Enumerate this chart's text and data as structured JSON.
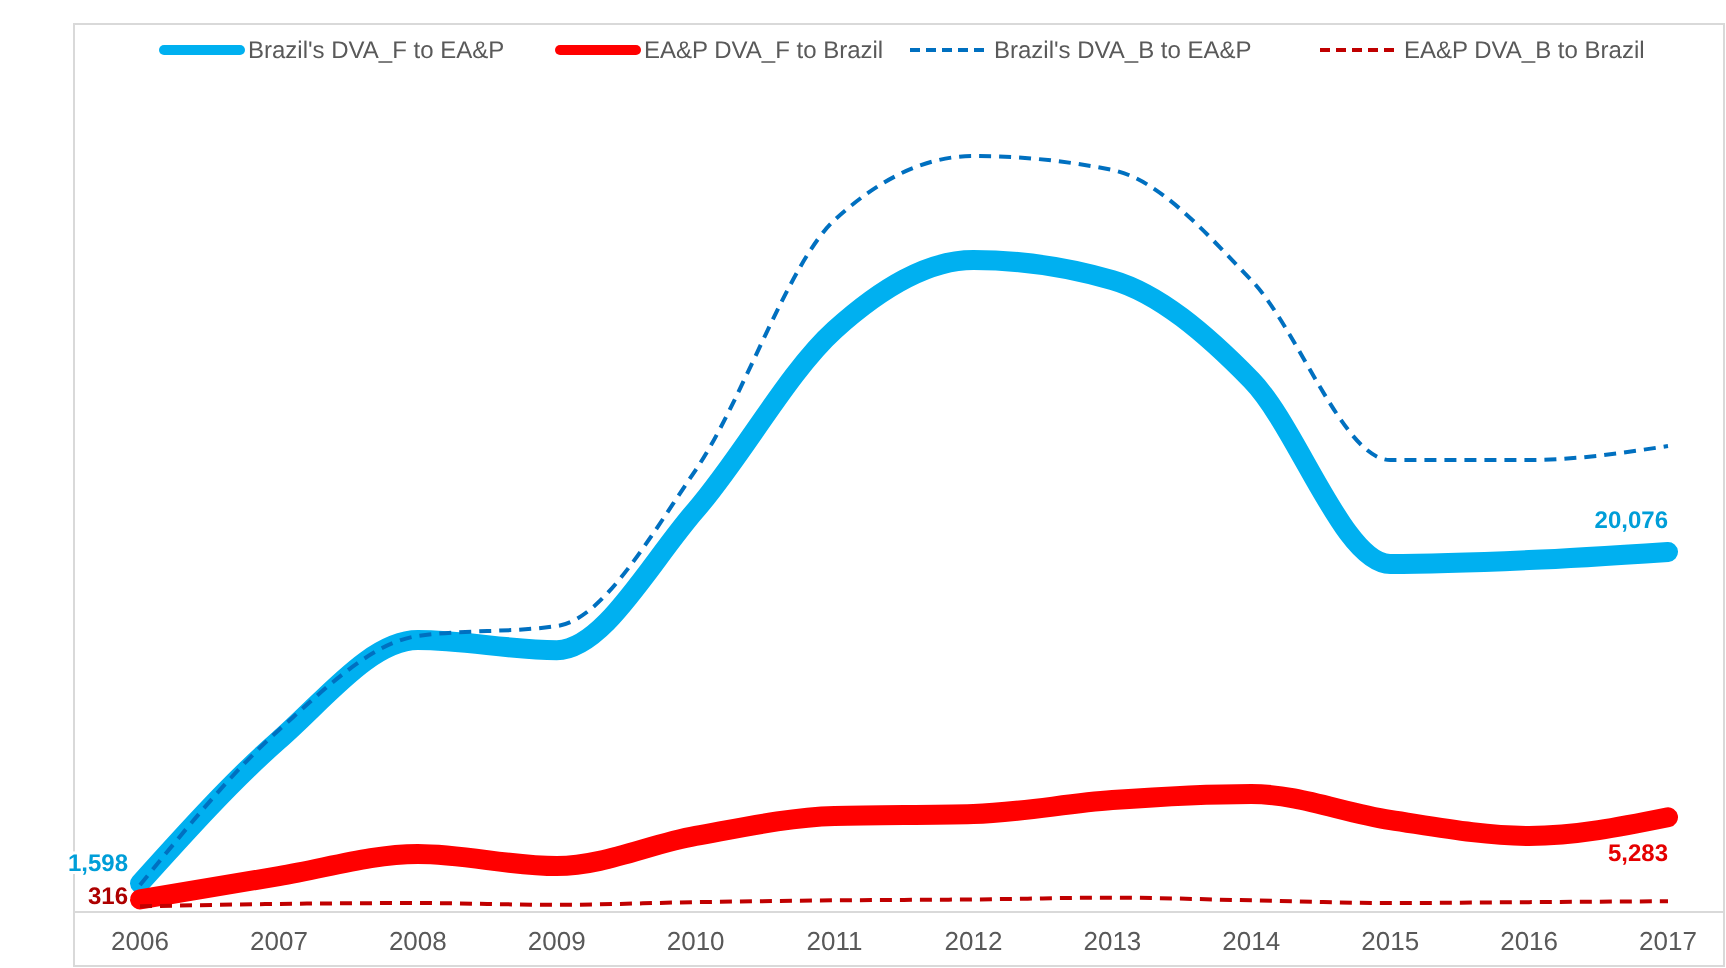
{
  "chart_data": {
    "type": "line",
    "categories": [
      "2006",
      "2007",
      "2008",
      "2009",
      "2010",
      "2011",
      "2012",
      "2013",
      "2014",
      "2015",
      "2016",
      "2017"
    ],
    "legend": "top",
    "tick_labels": "x",
    "series": [
      {
        "name": "Brazil's DVA_F to EA&P",
        "color": "#00b0f0",
        "line_style": "solid",
        "values": [
          1598,
          9590,
          15160,
          14600,
          22400,
          32450,
          36350,
          35230,
          29660,
          19400,
          19620,
          20076
        ],
        "value_labels": [
          "1,598",
          null,
          null,
          null,
          null,
          null,
          null,
          null,
          null,
          null,
          null,
          "20,076"
        ]
      },
      {
        "name": "EA&P DVA_F to Brazil",
        "color": "#ff0000",
        "line_style": "solid",
        "values": [
          700,
          2000,
          3230,
          2560,
          4240,
          5350,
          5460,
          6240,
          6580,
          5130,
          4240,
          5283
        ],
        "value_labels": [
          null,
          null,
          null,
          null,
          null,
          null,
          null,
          null,
          null,
          null,
          null,
          "5,283"
        ]
      },
      {
        "name": "Brazil's DVA_B to EA&P",
        "color": "#0070c0",
        "line_style": "dashed",
        "values": [
          1500,
          10150,
          15390,
          15940,
          24640,
          38580,
          42150,
          41370,
          35230,
          25200,
          25200,
          25980
        ]
      },
      {
        "name": "EA&P DVA_B to Brazil",
        "color": "#c00000",
        "line_style": "dashed",
        "values": [
          316,
          450,
          500,
          400,
          550,
          650,
          700,
          800,
          650,
          500,
          550,
          600
        ],
        "value_labels": [
          "316",
          null,
          null,
          null,
          null,
          null,
          null,
          null,
          null,
          null,
          null,
          null
        ]
      }
    ]
  }
}
